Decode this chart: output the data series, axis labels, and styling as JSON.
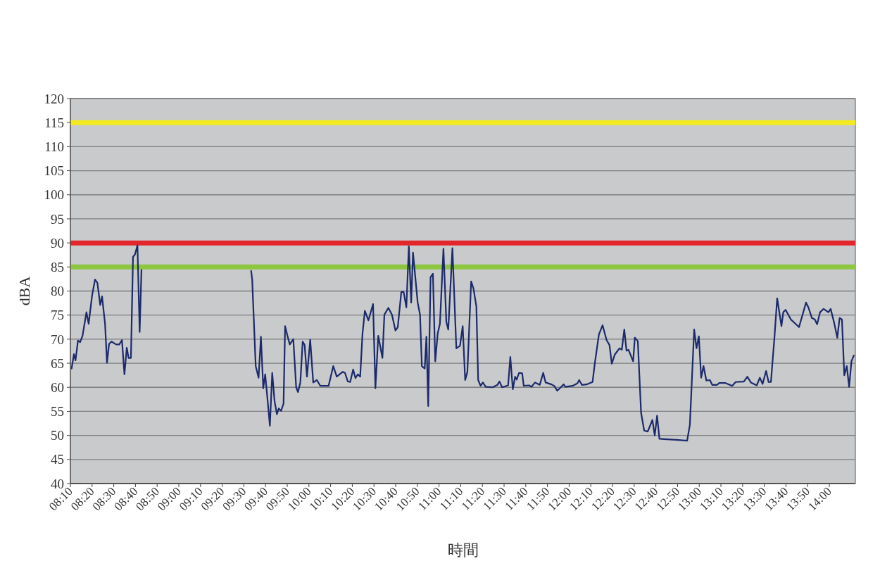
{
  "chart_data": {
    "type": "line",
    "xlabel": "時間",
    "ylabel": "dBA",
    "xlim": [
      8.1667,
      14.2
    ],
    "ylim": [
      40,
      120
    ],
    "yticks": [
      40,
      45,
      50,
      55,
      60,
      65,
      70,
      75,
      80,
      85,
      90,
      95,
      100,
      105,
      110,
      115,
      120
    ],
    "xticks": [
      {
        "value": 8.1667,
        "label": "08:10"
      },
      {
        "value": 8.3333,
        "label": "08:20"
      },
      {
        "value": 8.5,
        "label": "08:30"
      },
      {
        "value": 8.6667,
        "label": "08:40"
      },
      {
        "value": 8.8333,
        "label": "08:50"
      },
      {
        "value": 9,
        "label": "09:00"
      },
      {
        "value": 9.1667,
        "label": "09:10"
      },
      {
        "value": 9.3333,
        "label": "09:20"
      },
      {
        "value": 9.5,
        "label": "09:30"
      },
      {
        "value": 9.6667,
        "label": "09:40"
      },
      {
        "value": 9.8333,
        "label": "09:50"
      },
      {
        "value": 10,
        "label": "10:00"
      },
      {
        "value": 10.1667,
        "label": "10:10"
      },
      {
        "value": 10.3333,
        "label": "10:20"
      },
      {
        "value": 10.5,
        "label": "10:30"
      },
      {
        "value": 10.6667,
        "label": "10:40"
      },
      {
        "value": 10.8333,
        "label": "10:50"
      },
      {
        "value": 11,
        "label": "11:00"
      },
      {
        "value": 11.1667,
        "label": "11:10"
      },
      {
        "value": 11.3333,
        "label": "11:20"
      },
      {
        "value": 11.5,
        "label": "11:30"
      },
      {
        "value": 11.6667,
        "label": "11:40"
      },
      {
        "value": 11.8333,
        "label": "11:50"
      },
      {
        "value": 12,
        "label": "12:00"
      },
      {
        "value": 12.1667,
        "label": "12:10"
      },
      {
        "value": 12.3333,
        "label": "12:20"
      },
      {
        "value": 12.5,
        "label": "12:30"
      },
      {
        "value": 12.6667,
        "label": "12:40"
      },
      {
        "value": 12.8333,
        "label": "12:50"
      },
      {
        "value": 13,
        "label": "13:00"
      },
      {
        "value": 13.1667,
        "label": "13:10"
      },
      {
        "value": 13.3333,
        "label": "13:20"
      },
      {
        "value": 13.5,
        "label": "13:30"
      },
      {
        "value": 13.6667,
        "label": "13:40"
      },
      {
        "value": 13.8333,
        "label": "13:50"
      },
      {
        "value": 14,
        "label": "14:00"
      }
    ],
    "grid": "y",
    "marker": "none",
    "line_style": "solid",
    "ref_lines": [
      {
        "axis": "y",
        "value": 115,
        "color": "#f2ea1c"
      },
      {
        "axis": "y",
        "value": 90,
        "color": "#e3262b"
      },
      {
        "axis": "y",
        "value": 85,
        "color": "#8dc63f"
      }
    ],
    "series": [
      {
        "color": "#1b2a6b",
        "x": [
          8.176,
          8.194,
          8.206,
          8.225,
          8.242,
          8.26,
          8.29,
          8.307,
          8.333,
          8.356,
          8.374,
          8.396,
          8.41,
          8.433,
          8.448,
          8.464,
          8.482,
          8.518,
          8.542,
          8.563,
          8.582,
          8.6,
          8.614,
          8.632,
          8.648,
          8.663,
          8.682,
          8.699,
          8.713,
          9.141,
          9.556,
          9.564,
          9.591,
          9.613,
          9.631,
          9.649,
          9.664,
          9.678,
          9.7,
          9.718,
          9.736,
          9.754,
          9.768,
          9.786,
          9.805,
          9.817,
          9.835,
          9.853,
          9.88,
          9.902,
          9.916,
          9.934,
          9.952,
          9.967,
          9.985,
          10.01,
          10.033,
          10.061,
          10.088,
          10.115,
          10.151,
          10.187,
          10.214,
          10.259,
          10.277,
          10.299,
          10.317,
          10.34,
          10.358,
          10.376,
          10.394,
          10.412,
          10.43,
          10.457,
          10.493,
          10.511,
          10.533,
          10.565,
          10.58,
          10.611,
          10.638,
          10.665,
          10.683,
          10.71,
          10.728,
          10.749,
          10.768,
          10.786,
          10.8,
          10.836,
          10.854,
          10.868,
          10.89,
          10.903,
          10.917,
          10.935,
          10.953,
          10.971,
          10.99,
          11.007,
          11.034,
          11.056,
          11.071,
          11.103,
          11.133,
          11.161,
          11.182,
          11.201,
          11.218,
          11.247,
          11.265,
          11.287,
          11.301,
          11.32,
          11.337,
          11.359,
          11.413,
          11.449,
          11.464,
          11.485,
          11.531,
          11.548,
          11.567,
          11.585,
          11.597,
          11.615,
          11.639,
          11.651,
          11.693,
          11.711,
          11.738,
          11.774,
          11.801,
          11.819,
          11.864,
          11.885,
          11.909,
          11.936,
          11.958,
          11.972,
          12.026,
          12.063,
          12.077,
          12.098,
          12.134,
          12.18,
          12.198,
          12.229,
          12.257,
          12.288,
          12.31,
          12.328,
          12.351,
          12.387,
          12.405,
          12.424,
          12.441,
          12.456,
          12.492,
          12.505,
          12.528,
          12.553,
          12.577,
          12.604,
          12.64,
          12.658,
          12.676,
          12.694,
          12.748,
          12.82,
          12.907,
          12.928,
          12.961,
          12.979,
          12.997,
          13.015,
          13.033,
          13.055,
          13.082,
          13.1,
          13.136,
          13.154,
          13.199,
          13.253,
          13.28,
          13.343,
          13.37,
          13.397,
          13.442,
          13.466,
          13.487,
          13.514,
          13.533,
          13.551,
          13.578,
          13.599,
          13.632,
          13.646,
          13.664,
          13.704,
          13.74,
          13.767,
          13.821,
          13.839,
          13.866,
          13.888,
          13.906,
          13.929,
          13.956,
          13.993,
          14.01,
          14.037,
          14.061,
          14.079,
          14.097,
          14.115,
          14.134,
          14.152,
          14.17,
          14.188
        ],
        "values": [
          63.9,
          66.9,
          65.6,
          69.7,
          69.4,
          70.7,
          75.6,
          73.2,
          79.0,
          82.4,
          81.7,
          77.1,
          78.9,
          73.2,
          65.1,
          69.0,
          69.5,
          68.9,
          68.9,
          69.8,
          62.7,
          68.2,
          66.1,
          66.1,
          87.1,
          87.6,
          89.5,
          71.5,
          84.4,
          null,
          84.2,
          82.4,
          64.4,
          62.0,
          70.5,
          59.8,
          62.7,
          58.6,
          52.0,
          63.0,
          57.1,
          54.4,
          55.6,
          55.1,
          56.6,
          72.7,
          70.7,
          68.9,
          70.0,
          60.0,
          59.0,
          61.0,
          69.5,
          68.8,
          62.2,
          69.9,
          61.0,
          61.5,
          60.3,
          60.3,
          60.3,
          64.4,
          62.2,
          63.2,
          63.0,
          61.2,
          61.1,
          63.7,
          61.9,
          62.7,
          62.2,
          71.2,
          75.9,
          73.9,
          77.3,
          59.8,
          70.7,
          66.1,
          75.1,
          76.5,
          75.1,
          71.8,
          72.5,
          79.8,
          79.8,
          76.6,
          89.3,
          77.6,
          88.0,
          77.6,
          75.1,
          64.4,
          63.9,
          70.5,
          56.1,
          82.9,
          83.6,
          65.4,
          71.2,
          73.2,
          88.8,
          73.6,
          72.0,
          88.9,
          68.1,
          68.6,
          72.7,
          61.5,
          63.2,
          82.0,
          80.5,
          76.8,
          61.5,
          60.3,
          61.0,
          60.1,
          60.0,
          60.5,
          61.2,
          60.0,
          60.4,
          66.3,
          59.6,
          62.2,
          61.6,
          63.0,
          62.9,
          60.3,
          60.4,
          60.1,
          61.0,
          60.5,
          63.0,
          61.0,
          60.6,
          60.3,
          59.3,
          60.0,
          60.6,
          60.1,
          60.3,
          60.8,
          61.5,
          60.5,
          60.6,
          61.1,
          65.1,
          71.0,
          72.9,
          69.8,
          68.8,
          64.9,
          66.8,
          68.1,
          67.8,
          72.0,
          67.6,
          67.8,
          65.4,
          70.3,
          69.6,
          54.7,
          51.0,
          50.8,
          53.2,
          50.0,
          54.1,
          49.3,
          49.2,
          49.1,
          48.9,
          52.2,
          72.0,
          68.1,
          70.6,
          62.0,
          64.4,
          61.4,
          61.5,
          60.5,
          60.5,
          60.9,
          60.9,
          60.3,
          61.1,
          61.2,
          62.2,
          61.0,
          60.4,
          62.0,
          60.7,
          63.4,
          61.1,
          61.1,
          70.3,
          78.5,
          72.7,
          75.6,
          76.1,
          74.1,
          73.2,
          72.5,
          77.6,
          76.6,
          74.4,
          74.1,
          73.1,
          75.6,
          76.3,
          75.6,
          76.3,
          73.4,
          70.3,
          74.4,
          74.1,
          62.5,
          64.4,
          60.1,
          65.4,
          66.6
        ]
      }
    ]
  }
}
